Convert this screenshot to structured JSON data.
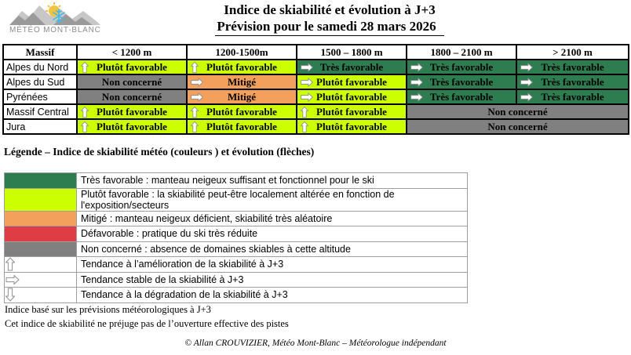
{
  "brand": {
    "name": "MÉTÉO MONT-BLANC"
  },
  "title": {
    "line1": "Indice de skiabilité et évolution à J+3",
    "line2": "Prévision pour le samedi 28 mars 2026"
  },
  "forecast_table": {
    "headers": [
      "Massif",
      "< 1200 m",
      "1200-1500m",
      "1500 – 1800 m",
      "1800 – 2100 m",
      "> 2100 m"
    ],
    "rows": [
      {
        "massif": "Alpes du Nord",
        "cells": [
          {
            "label": "Plutôt favorable",
            "status": "plutot_favorable",
            "arrow": "up",
            "span": 1
          },
          {
            "label": "Plutôt favorable",
            "status": "plutot_favorable",
            "arrow": "up",
            "span": 1
          },
          {
            "label": "Très favorable",
            "status": "tres_favorable",
            "arrow": "right",
            "span": 1
          },
          {
            "label": "Très favorable",
            "status": "tres_favorable",
            "arrow": "right",
            "span": 1
          },
          {
            "label": "Très favorable",
            "status": "tres_favorable",
            "arrow": "right",
            "span": 1
          }
        ]
      },
      {
        "massif": "Alpes du Sud",
        "cells": [
          {
            "label": "Non concerné",
            "status": "non_concerne",
            "arrow": "none",
            "span": 1
          },
          {
            "label": "Mitigé",
            "status": "mitige",
            "arrow": "right",
            "span": 1
          },
          {
            "label": "Plutôt favorable",
            "status": "plutot_favorable",
            "arrow": "right",
            "span": 1
          },
          {
            "label": "Très favorable",
            "status": "tres_favorable",
            "arrow": "right",
            "span": 1
          },
          {
            "label": "Très favorable",
            "status": "tres_favorable",
            "arrow": "right",
            "span": 1
          }
        ]
      },
      {
        "massif": "Pyrénées",
        "cells": [
          {
            "label": "Non concerné",
            "status": "non_concerne",
            "arrow": "none",
            "span": 1
          },
          {
            "label": "Mitigé",
            "status": "mitige",
            "arrow": "right",
            "span": 1
          },
          {
            "label": "Plutôt favorable",
            "status": "plutot_favorable",
            "arrow": "right",
            "span": 1
          },
          {
            "label": "Très favorable",
            "status": "tres_favorable",
            "arrow": "right",
            "span": 1
          },
          {
            "label": "Très favorable",
            "status": "tres_favorable",
            "arrow": "right",
            "span": 1
          }
        ]
      },
      {
        "massif": "Massif Central",
        "cells": [
          {
            "label": "Plutôt favorable",
            "status": "plutot_favorable",
            "arrow": "up",
            "span": 1
          },
          {
            "label": "Plutôt favorable",
            "status": "plutot_favorable",
            "arrow": "up",
            "span": 1
          },
          {
            "label": "Plutôt favorable",
            "status": "plutot_favorable",
            "arrow": "up",
            "span": 1
          },
          {
            "label": "Non concerné",
            "status": "non_concerne",
            "arrow": "none",
            "span": 2
          }
        ]
      },
      {
        "massif": "Jura",
        "cells": [
          {
            "label": "Plutôt favorable",
            "status": "plutot_favorable",
            "arrow": "up",
            "span": 1
          },
          {
            "label": "Plutôt favorable",
            "status": "plutot_favorable",
            "arrow": "up",
            "span": 1
          },
          {
            "label": "Plutôt favorable",
            "status": "plutot_favorable",
            "arrow": "up",
            "span": 1
          },
          {
            "label": "Non concerné",
            "status": "non_concerne",
            "arrow": "none",
            "span": 2
          }
        ]
      }
    ]
  },
  "legend": {
    "title": "Légende – Indice de skiabilité météo (couleurs ) et évolution (flèches)",
    "items": [
      {
        "swatch": "tres_favorable",
        "text": "Très favorable : manteau neigeux suffisant et fonctionnel pour le ski"
      },
      {
        "swatch": "plutot_favorable",
        "text": "Plutôt favorable : la skiabilité peut-être localement altérée en fonction de l'exposition/secteurs"
      },
      {
        "swatch": "mitige",
        "text": "Mitigé : manteau neigeux déficient, skiabilité très aléatoire"
      },
      {
        "swatch": "defavorable",
        "text": "Défavorable : pratique du ski très réduite"
      },
      {
        "swatch": "non_concerne",
        "text": "Non concerné : absence de domaines skiables à cette altitude"
      },
      {
        "swatch": "arrow_up",
        "text": "Tendance à l’amélioration de la skiabilité à J+3"
      },
      {
        "swatch": "arrow_right",
        "text": "Tendance stable de la skiabilité à J+3"
      },
      {
        "swatch": "arrow_down",
        "text": "Tendance à la dégradation de la skiabilité à J+3"
      }
    ]
  },
  "notes": {
    "line1": "Indice basé sur les prévisions météorologiques à J+3",
    "line2": "Cet indice de skiabilité ne préjuge pas de l’ouverture effective des pistes"
  },
  "footer": {
    "copyright": "© Allan CROUVIZIER, Météo Mont-Blanc – Météorologue indépendant"
  },
  "colors": {
    "tres_favorable": "#2E7D50",
    "plutot_favorable": "#CCFF00",
    "mitige": "#F2A05B",
    "defavorable": "#DE3D45",
    "non_concerne": "#808080"
  }
}
